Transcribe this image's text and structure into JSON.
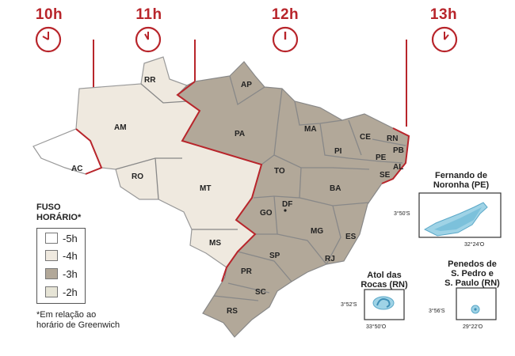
{
  "hours": [
    "10h",
    "11h",
    "12h",
    "13h"
  ],
  "states": {
    "RR": "RR",
    "AP": "AP",
    "AM": "AM",
    "PA": "PA",
    "MA": "MA",
    "CE": "CE",
    "RN": "RN",
    "PB": "PB",
    "PI": "PI",
    "PE": "PE",
    "AL": "AL",
    "SE": "SE",
    "AC": "AC",
    "RO": "RO",
    "TO": "TO",
    "BA": "BA",
    "MT": "MT",
    "GO": "GO",
    "DF": "DF",
    "MG": "MG",
    "ES": "ES",
    "MS": "MS",
    "SP": "SP",
    "RJ": "RJ",
    "PR": "PR",
    "SC": "SC",
    "RS": "RS"
  },
  "legend": {
    "title_line1": "FUSO",
    "title_line2": "HORÁRIO*",
    "items": [
      {
        "label": "-5h",
        "color": "#ffffff"
      },
      {
        "label": "-4h",
        "color": "#efe9df"
      },
      {
        "label": "-3h",
        "color": "#b2a899"
      },
      {
        "label": "-2h",
        "color": "#e6e4d6"
      }
    ]
  },
  "footnote_line1": "*Em relação ao",
  "footnote_line2": "horário de Greenwich",
  "insets": {
    "noronha": {
      "title1": "Fernando de",
      "title2": "Noronha (PE)",
      "lat": "3°50'S",
      "lon": "32°24'O"
    },
    "rocas": {
      "title1": "Atol das",
      "title2": "Rocas (RN)",
      "lat": "3°52'S",
      "lon": "33°50'O"
    },
    "penedos": {
      "title1": "Penedos de",
      "title2": "S. Pedro e",
      "title3": "S. Paulo (RN)",
      "lat": "3°56'S",
      "lon": "29°22'O"
    }
  },
  "colors": {
    "accent": "#b8252b",
    "zone_minus5": "#ffffff",
    "zone_minus4": "#efe9df",
    "zone_minus3": "#b2a899",
    "water": "#9fd3e6"
  }
}
